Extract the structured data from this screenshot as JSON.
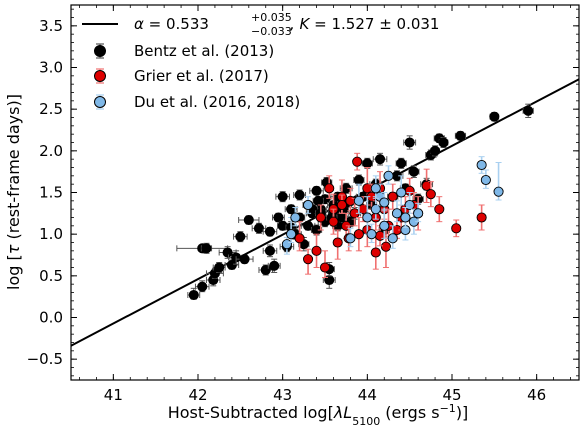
{
  "chart_data": {
    "type": "scatter",
    "title": "",
    "xlabel_prefix": "Host-Subtracted log[",
    "xlabel_lambda": "λL",
    "xlabel_sub": "5100",
    "xlabel_units": " (ergs s",
    "xlabel_sup": "−1",
    "xlabel_suffix": ")]",
    "ylabel_prefix": "log [",
    "ylabel_tau": "τ",
    "ylabel_suffix": "  (rest-frame days)]",
    "xlim": [
      40.5,
      46.5
    ],
    "ylim": [
      -0.75,
      3.75
    ],
    "xticks": [
      41,
      42,
      43,
      44,
      45,
      46
    ],
    "yticks": [
      -0.5,
      0.0,
      0.5,
      1.0,
      1.5,
      2.0,
      2.5,
      3.0,
      3.5
    ],
    "grid": false,
    "legend_position": "top-left",
    "fit": {
      "label_alpha": "α",
      "label_eq": " = 0.533",
      "label_sup": "+0.035",
      "label_sub": "−0.033",
      "label_k": ", K",
      "label_rest": " = 1.527 ± 0.031",
      "intercept": 1.527,
      "slope": 0.533,
      "x0": 44,
      "color": "#000000"
    },
    "series": [
      {
        "name": "Bentz et al. (2013)",
        "color": "#000000",
        "errcolor": "#555555",
        "points": [
          [
            41.95,
            0.27,
            0.07,
            0.05,
            0.08
          ],
          [
            42.05,
            0.37,
            0.08,
            0.06,
            0.07
          ],
          [
            42.05,
            0.83,
            0.3,
            0.04,
            0.04
          ],
          [
            42.1,
            0.83,
            0.06,
            0.06,
            0.06
          ],
          [
            42.18,
            0.45,
            0.08,
            0.07,
            0.07
          ],
          [
            42.2,
            0.53,
            0.1,
            0.06,
            0.06
          ],
          [
            42.25,
            0.6,
            0.07,
            0.06,
            0.06
          ],
          [
            42.35,
            0.78,
            0.1,
            0.07,
            0.07
          ],
          [
            42.4,
            0.63,
            0.08,
            0.05,
            0.06
          ],
          [
            42.45,
            0.72,
            0.09,
            0.08,
            0.08
          ],
          [
            42.5,
            0.97,
            0.08,
            0.06,
            0.06
          ],
          [
            42.55,
            0.7,
            0.1,
            0.05,
            0.05
          ],
          [
            42.6,
            1.17,
            0.12,
            0.05,
            0.05
          ],
          [
            42.72,
            1.07,
            0.08,
            0.06,
            0.06
          ],
          [
            42.8,
            0.57,
            0.08,
            0.06,
            0.06
          ],
          [
            42.85,
            0.8,
            0.08,
            0.07,
            0.07
          ],
          [
            42.85,
            1.03,
            0.08,
            0.05,
            0.05
          ],
          [
            42.9,
            0.62,
            0.07,
            0.08,
            0.08
          ],
          [
            42.95,
            1.2,
            0.07,
            0.05,
            0.05
          ],
          [
            43.0,
            1.1,
            0.06,
            0.05,
            0.05
          ],
          [
            43.0,
            1.45,
            0.08,
            0.06,
            0.06
          ],
          [
            43.05,
            0.85,
            0.08,
            0.06,
            0.06
          ],
          [
            43.1,
            1.08,
            0.06,
            0.07,
            0.07
          ],
          [
            43.1,
            1.3,
            0.07,
            0.05,
            0.05
          ],
          [
            43.15,
            1.0,
            0.07,
            0.06,
            0.06
          ],
          [
            43.2,
            1.2,
            0.06,
            0.05,
            0.05
          ],
          [
            43.2,
            1.47,
            0.07,
            0.06,
            0.06
          ],
          [
            43.25,
            0.88,
            0.06,
            0.08,
            0.08
          ],
          [
            43.3,
            1.1,
            0.08,
            0.05,
            0.05
          ],
          [
            43.3,
            1.35,
            0.06,
            0.04,
            0.04
          ],
          [
            43.35,
            1.25,
            0.07,
            0.05,
            0.05
          ],
          [
            43.4,
            1.52,
            0.08,
            0.05,
            0.05
          ],
          [
            43.4,
            1.05,
            0.06,
            0.06,
            0.06
          ],
          [
            43.45,
            1.3,
            0.07,
            0.05,
            0.05
          ],
          [
            43.5,
            1.15,
            0.08,
            0.06,
            0.06
          ],
          [
            43.5,
            1.42,
            0.06,
            0.05,
            0.05
          ],
          [
            43.52,
            1.62,
            0.06,
            0.06,
            0.06
          ],
          [
            43.55,
            0.45,
            0.07,
            0.1,
            0.1
          ],
          [
            43.55,
            0.58,
            0.06,
            0.08,
            0.08
          ],
          [
            43.6,
            1.25,
            0.06,
            0.05,
            0.05
          ],
          [
            43.6,
            1.35,
            0.07,
            0.04,
            0.04
          ],
          [
            43.65,
            1.1,
            0.06,
            0.06,
            0.06
          ],
          [
            43.65,
            1.45,
            0.08,
            0.05,
            0.05
          ],
          [
            43.7,
            1.2,
            0.06,
            0.05,
            0.05
          ],
          [
            43.72,
            1.3,
            0.05,
            0.05,
            0.05
          ],
          [
            43.75,
            1.55,
            0.07,
            0.06,
            0.06
          ],
          [
            43.78,
            1.38,
            0.06,
            0.05,
            0.05
          ],
          [
            43.8,
            1.15,
            0.06,
            0.06,
            0.06
          ],
          [
            43.85,
            1.25,
            0.07,
            0.07,
            0.07
          ],
          [
            43.9,
            1.65,
            0.06,
            0.06,
            0.06
          ],
          [
            43.95,
            1.45,
            0.08,
            0.05,
            0.05
          ],
          [
            44.0,
            1.85,
            0.06,
            0.06,
            0.06
          ],
          [
            44.05,
            1.35,
            0.06,
            0.05,
            0.05
          ],
          [
            44.1,
            1.6,
            0.07,
            0.06,
            0.06
          ],
          [
            44.15,
            1.9,
            0.08,
            0.07,
            0.07
          ],
          [
            44.2,
            1.05,
            0.06,
            0.08,
            0.08
          ],
          [
            44.3,
            1.45,
            0.06,
            0.05,
            0.05
          ],
          [
            44.35,
            1.7,
            0.07,
            0.06,
            0.06
          ],
          [
            44.4,
            1.85,
            0.06,
            0.06,
            0.06
          ],
          [
            44.45,
            1.55,
            0.06,
            0.05,
            0.05
          ],
          [
            44.5,
            2.1,
            0.07,
            0.08,
            0.08
          ],
          [
            44.55,
            1.75,
            0.06,
            0.07,
            0.07
          ],
          [
            44.6,
            1.42,
            0.06,
            0.06,
            0.06
          ],
          [
            44.7,
            1.6,
            0.07,
            0.07,
            0.07
          ],
          [
            44.75,
            1.95,
            0.06,
            0.06,
            0.06
          ],
          [
            44.8,
            2.0,
            0.05,
            0.06,
            0.06
          ],
          [
            44.85,
            2.15,
            0.06,
            0.05,
            0.05
          ],
          [
            44.9,
            2.1,
            0.05,
            0.06,
            0.06
          ],
          [
            45.1,
            2.18,
            0.06,
            0.05,
            0.05
          ],
          [
            45.5,
            2.41,
            0.05,
            0.05,
            0.05
          ],
          [
            45.9,
            2.48,
            0.06,
            0.08,
            0.08
          ],
          [
            43.35,
            1.3,
            0.06,
            0.05,
            0.05
          ],
          [
            43.45,
            1.25,
            0.06,
            0.05,
            0.05
          ],
          [
            43.58,
            1.2,
            0.06,
            0.05,
            0.05
          ],
          [
            43.62,
            1.3,
            0.05,
            0.05,
            0.05
          ],
          [
            43.42,
            1.4,
            0.06,
            0.05,
            0.05
          ]
        ]
      },
      {
        "name": "Grier et al. (2017)",
        "color": "#dd0000",
        "errcolor": "#f07070",
        "points": [
          [
            43.2,
            0.95,
            0,
            0.15,
            0.2
          ],
          [
            43.3,
            0.7,
            0,
            0.18,
            0.12
          ],
          [
            43.4,
            0.8,
            0,
            0.2,
            0.2
          ],
          [
            43.45,
            1.2,
            0,
            0.15,
            0.15
          ],
          [
            43.5,
            0.6,
            0,
            0.12,
            0.2
          ],
          [
            43.55,
            1.55,
            0,
            0.12,
            0.15
          ],
          [
            43.6,
            1.3,
            0,
            0.2,
            0.18
          ],
          [
            43.65,
            0.9,
            0,
            0.2,
            0.15
          ],
          [
            43.7,
            1.45,
            0,
            0.2,
            0.2
          ],
          [
            43.75,
            1.1,
            0,
            0.15,
            0.15
          ],
          [
            43.8,
            1.4,
            0,
            0.12,
            0.15
          ],
          [
            43.85,
            1.25,
            0,
            0.15,
            0.18
          ],
          [
            43.88,
            1.87,
            0,
            0.1,
            0.1
          ],
          [
            43.9,
            1.0,
            0,
            0.2,
            0.2
          ],
          [
            43.95,
            1.3,
            0,
            0.15,
            0.15
          ],
          [
            44.0,
            1.55,
            0,
            0.2,
            0.25
          ],
          [
            44.05,
            1.45,
            0,
            0.15,
            0.15
          ],
          [
            44.1,
            0.78,
            0,
            0.2,
            0.2
          ],
          [
            44.1,
            1.2,
            0,
            0.15,
            0.2
          ],
          [
            44.15,
            1.55,
            0,
            0.2,
            0.2
          ],
          [
            44.2,
            1.3,
            0,
            0.12,
            0.12
          ],
          [
            44.22,
            0.85,
            0,
            0.25,
            0.2
          ],
          [
            44.25,
            1.1,
            0,
            0.15,
            0.2
          ],
          [
            44.3,
            1.45,
            0,
            0.15,
            0.15
          ],
          [
            44.35,
            1.05,
            0,
            0.1,
            0.2
          ],
          [
            44.4,
            1.2,
            0,
            0.15,
            0.15
          ],
          [
            44.45,
            1.3,
            0,
            0.15,
            0.15
          ],
          [
            44.5,
            1.52,
            0,
            0.15,
            0.15
          ],
          [
            44.55,
            1.35,
            0,
            0.1,
            0.15
          ],
          [
            44.6,
            1.25,
            0,
            0.2,
            0.2
          ],
          [
            44.7,
            1.58,
            0,
            0.2,
            0.2
          ],
          [
            44.75,
            1.48,
            0,
            0.15,
            0.15
          ],
          [
            44.85,
            1.3,
            0,
            0.15,
            0.15
          ],
          [
            45.05,
            1.07,
            0,
            0.1,
            0.1
          ],
          [
            45.35,
            1.2,
            0,
            0.15,
            0.15
          ],
          [
            43.6,
            1.15,
            0,
            0.15,
            0.15
          ],
          [
            43.7,
            1.35,
            0,
            0.1,
            0.12
          ],
          [
            43.78,
            0.95,
            0,
            0.15,
            0.15
          ],
          [
            44.0,
            1.05,
            0,
            0.2,
            0.2
          ],
          [
            44.15,
            0.98,
            0,
            0.12,
            0.12
          ]
        ]
      },
      {
        "name": "Du et al. (2016, 2018)",
        "color": "#7fb8e8",
        "errcolor": "#a9d0f0",
        "points": [
          [
            43.05,
            0.88,
            0,
            0.12,
            0.08
          ],
          [
            43.1,
            1.0,
            0,
            0.1,
            0.2
          ],
          [
            43.15,
            1.2,
            0,
            0.1,
            0.12
          ],
          [
            43.3,
            1.35,
            0,
            0.1,
            0.1
          ],
          [
            43.8,
            0.95,
            0,
            0.1,
            0.12
          ],
          [
            43.9,
            1.4,
            0,
            0.15,
            0.2
          ],
          [
            44.0,
            1.2,
            0,
            0.2,
            0.25
          ],
          [
            44.05,
            1.0,
            0,
            0.1,
            0.12
          ],
          [
            44.1,
            1.3,
            0,
            0.12,
            0.15
          ],
          [
            44.15,
            1.45,
            0,
            0.1,
            0.15
          ],
          [
            44.2,
            1.1,
            0,
            0.15,
            0.2
          ],
          [
            44.25,
            1.7,
            0,
            0.1,
            0.12
          ],
          [
            44.3,
            0.95,
            0,
            0.12,
            0.15
          ],
          [
            44.35,
            1.25,
            0,
            0.1,
            0.15
          ],
          [
            44.4,
            1.5,
            0,
            0.15,
            0.2
          ],
          [
            44.45,
            1.05,
            0,
            0.12,
            0.15
          ],
          [
            44.5,
            1.35,
            0,
            0.1,
            0.15
          ],
          [
            44.55,
            1.15,
            0,
            0.15,
            0.15
          ],
          [
            44.6,
            1.25,
            0,
            0.1,
            0.12
          ],
          [
            44.1,
            1.55,
            0,
            0.12,
            0.15
          ],
          [
            45.35,
            1.83,
            0,
            0.1,
            0.1
          ],
          [
            45.4,
            1.65,
            0,
            0.1,
            0.12
          ],
          [
            45.55,
            1.51,
            0,
            0.1,
            0.35
          ],
          [
            44.45,
            1.2,
            0,
            0.12,
            0.12
          ],
          [
            44.2,
            1.38,
            0,
            0.1,
            0.12
          ]
        ]
      }
    ]
  }
}
